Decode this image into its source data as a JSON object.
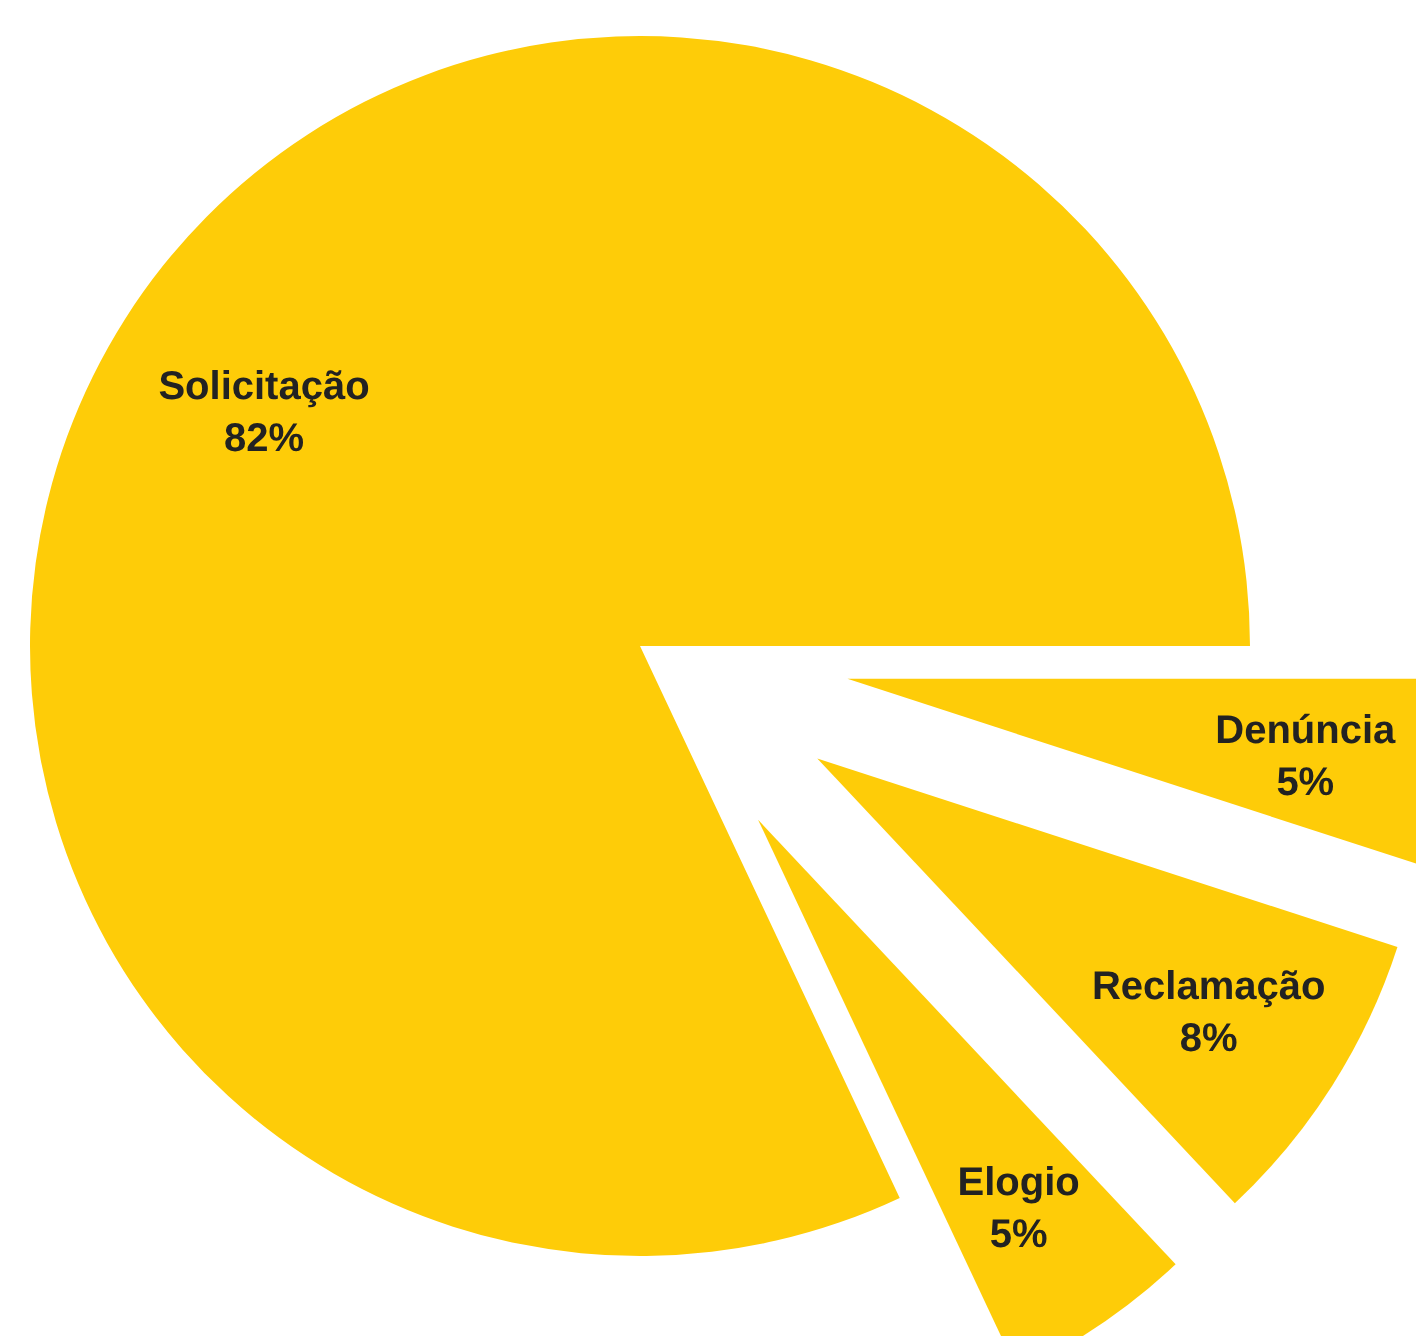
{
  "chart_data": {
    "type": "pie",
    "categories": [
      "Solicitação",
      "Denúncia",
      "Reclamação",
      "Elogio"
    ],
    "values": [
      82,
      5,
      8,
      5
    ],
    "value_labels": [
      "82%",
      "5%",
      "8%",
      "5%"
    ],
    "colors": [
      "#fecc08",
      "#fecc08",
      "#fecc08",
      "#fecc08"
    ]
  }
}
